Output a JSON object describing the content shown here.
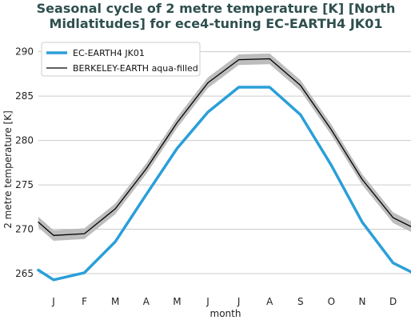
{
  "chart_data": {
    "type": "line",
    "title_lines": [
      "Seasonal cycle of 2 metre temperature [K] [North",
      "Midlatitudes] for ece4-tuning EC-EARTH4 JK01"
    ],
    "xlabel": "month",
    "ylabel": "2 metre temperature [K]",
    "categories": [
      "J",
      "F",
      "M",
      "A",
      "M",
      "J",
      "J",
      "A",
      "S",
      "O",
      "N",
      "D"
    ],
    "ylim": [
      263.2,
      291.5
    ],
    "yticks": [
      265,
      270,
      275,
      280,
      285,
      290
    ],
    "grid": "horizontal",
    "legend_position": "top-left",
    "series": [
      {
        "name": "EC-EARTH4 JK01",
        "color": "#2a9fd8",
        "values": [
          264.3,
          265.1,
          268.6,
          273.9,
          279.1,
          283.2,
          286.0,
          286.0,
          282.9,
          277.2,
          270.8,
          266.2
        ],
        "edge_values": [
          265.4,
          265.2
        ]
      },
      {
        "name": "BERKELEY-EARTH aqua-filled",
        "color": "#000000",
        "band_color": "#bdbdbd",
        "values": [
          269.3,
          269.5,
          272.3,
          276.8,
          282.0,
          286.5,
          289.1,
          289.2,
          286.2,
          281.2,
          275.6,
          271.3
        ],
        "edge_values": [
          270.8,
          270.3
        ],
        "band_halfwidth": 0.6
      }
    ]
  }
}
